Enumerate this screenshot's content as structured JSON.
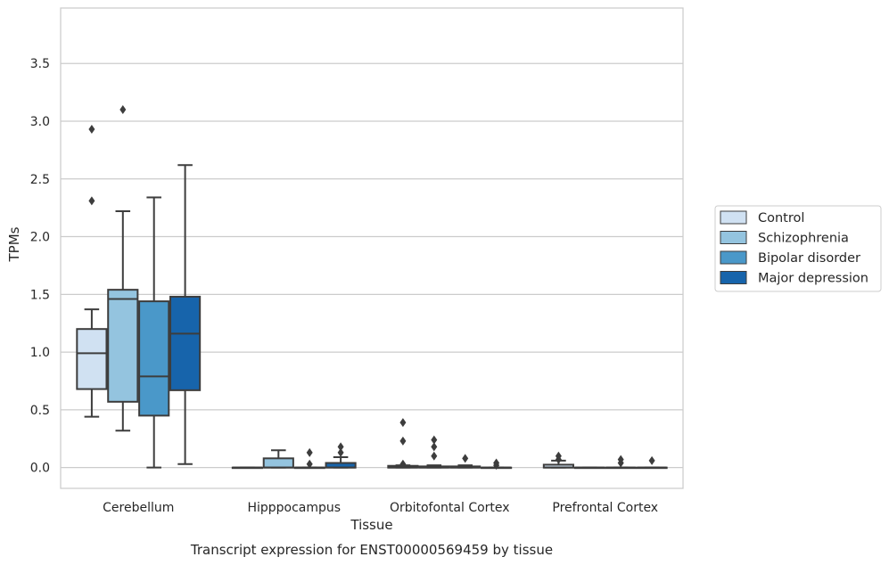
{
  "chart_data": {
    "type": "box",
    "title": "",
    "caption": "Transcript expression for ENST00000569459 by tissue",
    "xlabel": "Tissue",
    "ylabel": "TPMs",
    "ylim": [
      -0.18,
      3.98
    ],
    "yticks": [
      "0.0",
      "0.5",
      "1.0",
      "1.5",
      "2.0",
      "2.5",
      "3.0",
      "3.5"
    ],
    "grid": "horizontal",
    "legend_position": "right",
    "categories": [
      "Cerebellum",
      "Hipppocampus",
      "Orbitofontal Cortex",
      "Prefrontal Cortex"
    ],
    "series": [
      {
        "name": "Control",
        "color": "#d0e1f2",
        "boxes": [
          {
            "whisker_low": 0.44,
            "q1": 0.68,
            "median": 0.99,
            "q3": 1.2,
            "whisker_high": 1.37,
            "outliers": [
              2.31,
              2.93
            ]
          },
          {
            "whisker_low": 0.0,
            "q1": 0.0,
            "median": 0.0,
            "q3": 0.0,
            "whisker_high": 0.0,
            "outliers": []
          },
          {
            "whisker_low": 0.0,
            "q1": 0.0,
            "median": 0.0,
            "q3": 0.015,
            "whisker_high": 0.02,
            "outliers": [
              0.03,
              0.23,
              0.39
            ]
          },
          {
            "whisker_low": 0.0,
            "q1": 0.0,
            "median": 0.0,
            "q3": 0.025,
            "whisker_high": 0.06,
            "outliers": [
              0.07,
              0.1
            ]
          }
        ]
      },
      {
        "name": "Schizophrenia",
        "color": "#94c4df",
        "boxes": [
          {
            "whisker_low": 0.32,
            "q1": 0.57,
            "median": 1.46,
            "q3": 1.54,
            "whisker_high": 2.22,
            "outliers": [
              3.1
            ]
          },
          {
            "whisker_low": 0.0,
            "q1": 0.0,
            "median": 0.0,
            "q3": 0.08,
            "whisker_high": 0.15,
            "outliers": []
          },
          {
            "whisker_low": 0.0,
            "q1": 0.0,
            "median": 0.0,
            "q3": 0.01,
            "whisker_high": 0.02,
            "outliers": [
              0.1,
              0.18,
              0.24
            ]
          },
          {
            "whisker_low": 0.0,
            "q1": 0.0,
            "median": 0.0,
            "q3": 0.0,
            "whisker_high": 0.0,
            "outliers": []
          }
        ]
      },
      {
        "name": "Bipolar disorder",
        "color": "#4a98c9",
        "boxes": [
          {
            "whisker_low": 0.0,
            "q1": 0.45,
            "median": 0.79,
            "q3": 1.44,
            "whisker_high": 2.34,
            "outliers": []
          },
          {
            "whisker_low": 0.0,
            "q1": 0.0,
            "median": 0.0,
            "q3": 0.0,
            "whisker_high": 0.0,
            "outliers": [
              0.03,
              0.13
            ]
          },
          {
            "whisker_low": 0.0,
            "q1": 0.0,
            "median": 0.0,
            "q3": 0.01,
            "whisker_high": 0.02,
            "outliers": [
              0.08
            ]
          },
          {
            "whisker_low": 0.0,
            "q1": 0.0,
            "median": 0.0,
            "q3": 0.0,
            "whisker_high": 0.0,
            "outliers": [
              0.04,
              0.07
            ]
          }
        ]
      },
      {
        "name": "Major depression",
        "color": "#1764ab",
        "boxes": [
          {
            "whisker_low": 0.03,
            "q1": 0.67,
            "median": 1.16,
            "q3": 1.48,
            "whisker_high": 2.62,
            "outliers": []
          },
          {
            "whisker_low": 0.0,
            "q1": 0.0,
            "median": 0.0,
            "q3": 0.04,
            "whisker_high": 0.09,
            "outliers": [
              0.13,
              0.18
            ]
          },
          {
            "whisker_low": 0.0,
            "q1": 0.0,
            "median": 0.0,
            "q3": 0.0,
            "whisker_high": 0.0,
            "outliers": [
              0.02,
              0.04
            ]
          },
          {
            "whisker_low": 0.0,
            "q1": 0.0,
            "median": 0.0,
            "q3": 0.0,
            "whisker_high": 0.0,
            "outliers": [
              0.06
            ]
          }
        ]
      }
    ]
  }
}
